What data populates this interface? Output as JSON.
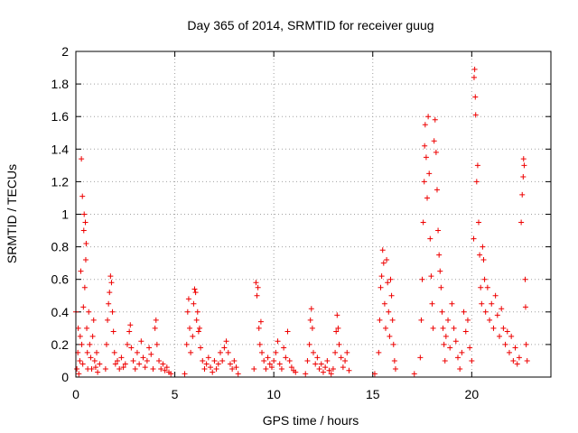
{
  "chart_data": {
    "type": "scatter",
    "title": "Day 365 of 2014, SRMTID for receiver guug",
    "xlabel": "GPS time / hours",
    "ylabel": "SRMTID / TECUs",
    "xlim": [
      0,
      24
    ],
    "ylim": [
      0,
      2
    ],
    "xticks": [
      "0",
      "5",
      "10",
      "15",
      "20"
    ],
    "xtick_values": [
      0,
      5,
      10,
      15,
      20
    ],
    "yticks": [
      "0",
      "0.2",
      "0.4",
      "0.6",
      "0.8",
      "1",
      "1.2",
      "1.4",
      "1.6",
      "1.8",
      "2"
    ],
    "ytick_values": [
      0,
      0.2,
      0.4,
      0.6,
      0.8,
      1.0,
      1.2,
      1.4,
      1.6,
      1.8,
      2.0
    ],
    "grid": true,
    "marker": "+",
    "color": "#ee0000",
    "series": [
      {
        "name": "SRMTID",
        "points": [
          [
            0.0,
            0.4
          ],
          [
            0.05,
            0.05
          ],
          [
            0.1,
            0.15
          ],
          [
            0.12,
            0.3
          ],
          [
            0.15,
            0.02
          ],
          [
            0.2,
            0.1
          ],
          [
            0.22,
            0.25
          ],
          [
            0.25,
            0.65
          ],
          [
            0.28,
            1.34
          ],
          [
            0.3,
            0.2
          ],
          [
            0.33,
            1.11
          ],
          [
            0.35,
            0.08
          ],
          [
            0.38,
            0.43
          ],
          [
            0.4,
            0.9
          ],
          [
            0.42,
            1.0
          ],
          [
            0.45,
            0.55
          ],
          [
            0.48,
            0.95
          ],
          [
            0.5,
            0.72
          ],
          [
            0.52,
            0.82
          ],
          [
            0.55,
            0.3
          ],
          [
            0.58,
            0.15
          ],
          [
            0.6,
            0.05
          ],
          [
            0.65,
            0.4
          ],
          [
            0.7,
            0.2
          ],
          [
            0.75,
            0.12
          ],
          [
            0.8,
            0.05
          ],
          [
            0.85,
            0.25
          ],
          [
            0.9,
            0.35
          ],
          [
            0.95,
            0.1
          ],
          [
            1.0,
            0.06
          ],
          [
            1.05,
            0.15
          ],
          [
            1.1,
            0.03
          ],
          [
            1.2,
            0.08
          ],
          [
            1.5,
            0.05
          ],
          [
            1.55,
            0.2
          ],
          [
            1.6,
            0.35
          ],
          [
            1.65,
            0.45
          ],
          [
            1.7,
            0.52
          ],
          [
            1.75,
            0.62
          ],
          [
            1.8,
            0.58
          ],
          [
            1.85,
            0.4
          ],
          [
            1.9,
            0.28
          ],
          [
            1.95,
            0.15
          ],
          [
            2.0,
            0.08
          ],
          [
            2.1,
            0.1
          ],
          [
            2.2,
            0.05
          ],
          [
            2.3,
            0.12
          ],
          [
            2.4,
            0.06
          ],
          [
            2.5,
            0.08
          ],
          [
            2.6,
            0.2
          ],
          [
            2.7,
            0.28
          ],
          [
            2.75,
            0.32
          ],
          [
            2.8,
            0.18
          ],
          [
            2.9,
            0.1
          ],
          [
            3.0,
            0.05
          ],
          [
            3.1,
            0.15
          ],
          [
            3.2,
            0.08
          ],
          [
            3.3,
            0.22
          ],
          [
            3.4,
            0.12
          ],
          [
            3.5,
            0.06
          ],
          [
            3.6,
            0.1
          ],
          [
            3.7,
            0.18
          ],
          [
            3.8,
            0.14
          ],
          [
            3.9,
            0.05
          ],
          [
            4.0,
            0.3
          ],
          [
            4.05,
            0.35
          ],
          [
            4.1,
            0.2
          ],
          [
            4.2,
            0.1
          ],
          [
            4.3,
            0.05
          ],
          [
            4.4,
            0.08
          ],
          [
            4.5,
            0.04
          ],
          [
            4.6,
            0.06
          ],
          [
            4.7,
            0.03
          ],
          [
            4.8,
            0.02
          ],
          [
            5.5,
            0.02
          ],
          [
            5.6,
            0.2
          ],
          [
            5.65,
            0.4
          ],
          [
            5.7,
            0.48
          ],
          [
            5.75,
            0.3
          ],
          [
            5.8,
            0.15
          ],
          [
            5.9,
            0.25
          ],
          [
            5.95,
            0.45
          ],
          [
            6.0,
            0.54
          ],
          [
            6.05,
            0.52
          ],
          [
            6.1,
            0.35
          ],
          [
            6.15,
            0.4
          ],
          [
            6.2,
            0.28
          ],
          [
            6.25,
            0.3
          ],
          [
            6.3,
            0.18
          ],
          [
            6.4,
            0.1
          ],
          [
            6.5,
            0.05
          ],
          [
            6.6,
            0.08
          ],
          [
            6.7,
            0.12
          ],
          [
            6.8,
            0.06
          ],
          [
            6.9,
            0.03
          ],
          [
            7.0,
            0.1
          ],
          [
            7.1,
            0.05
          ],
          [
            7.2,
            0.08
          ],
          [
            7.3,
            0.15
          ],
          [
            7.4,
            0.1
          ],
          [
            7.5,
            0.18
          ],
          [
            7.6,
            0.22
          ],
          [
            7.7,
            0.15
          ],
          [
            7.8,
            0.08
          ],
          [
            7.9,
            0.05
          ],
          [
            8.0,
            0.1
          ],
          [
            8.1,
            0.06
          ],
          [
            8.2,
            0.02
          ],
          [
            9.0,
            0.05
          ],
          [
            9.1,
            0.58
          ],
          [
            9.15,
            0.5
          ],
          [
            9.2,
            0.55
          ],
          [
            9.25,
            0.3
          ],
          [
            9.3,
            0.2
          ],
          [
            9.35,
            0.34
          ],
          [
            9.4,
            0.15
          ],
          [
            9.5,
            0.1
          ],
          [
            9.6,
            0.05
          ],
          [
            9.7,
            0.12
          ],
          [
            9.8,
            0.08
          ],
          [
            9.9,
            0.06
          ],
          [
            10.0,
            0.1
          ],
          [
            10.1,
            0.15
          ],
          [
            10.2,
            0.22
          ],
          [
            10.3,
            0.08
          ],
          [
            10.4,
            0.05
          ],
          [
            10.5,
            0.18
          ],
          [
            10.6,
            0.12
          ],
          [
            10.7,
            0.28
          ],
          [
            10.8,
            0.1
          ],
          [
            10.9,
            0.06
          ],
          [
            11.0,
            0.04
          ],
          [
            11.1,
            0.03
          ],
          [
            11.6,
            0.02
          ],
          [
            11.7,
            0.1
          ],
          [
            11.8,
            0.2
          ],
          [
            11.85,
            0.35
          ],
          [
            11.9,
            0.42
          ],
          [
            11.95,
            0.3
          ],
          [
            12.0,
            0.15
          ],
          [
            12.1,
            0.08
          ],
          [
            12.2,
            0.12
          ],
          [
            12.3,
            0.05
          ],
          [
            12.4,
            0.08
          ],
          [
            12.5,
            0.03
          ],
          [
            12.6,
            0.06
          ],
          [
            12.7,
            0.1
          ],
          [
            12.8,
            0.04
          ],
          [
            12.9,
            0.02
          ],
          [
            13.0,
            0.05
          ],
          [
            13.1,
            0.15
          ],
          [
            13.15,
            0.28
          ],
          [
            13.2,
            0.38
          ],
          [
            13.25,
            0.3
          ],
          [
            13.3,
            0.2
          ],
          [
            13.4,
            0.12
          ],
          [
            13.5,
            0.06
          ],
          [
            13.6,
            0.1
          ],
          [
            13.7,
            0.15
          ],
          [
            13.8,
            0.04
          ],
          [
            15.1,
            0.02
          ],
          [
            15.3,
            0.15
          ],
          [
            15.35,
            0.35
          ],
          [
            15.4,
            0.55
          ],
          [
            15.45,
            0.62
          ],
          [
            15.5,
            0.78
          ],
          [
            15.55,
            0.7
          ],
          [
            15.6,
            0.45
          ],
          [
            15.65,
            0.3
          ],
          [
            15.7,
            0.72
          ],
          [
            15.75,
            0.58
          ],
          [
            15.8,
            0.4
          ],
          [
            15.85,
            0.25
          ],
          [
            15.9,
            0.6
          ],
          [
            15.95,
            0.5
          ],
          [
            16.0,
            0.35
          ],
          [
            16.05,
            0.2
          ],
          [
            16.1,
            0.1
          ],
          [
            16.15,
            0.05
          ],
          [
            17.1,
            0.02
          ],
          [
            17.4,
            0.12
          ],
          [
            17.45,
            0.35
          ],
          [
            17.5,
            0.6
          ],
          [
            17.55,
            0.95
          ],
          [
            17.6,
            1.2
          ],
          [
            17.62,
            1.42
          ],
          [
            17.65,
            1.55
          ],
          [
            17.7,
            1.35
          ],
          [
            17.75,
            1.1
          ],
          [
            17.8,
            1.6
          ],
          [
            17.85,
            1.25
          ],
          [
            17.9,
            0.85
          ],
          [
            17.95,
            0.62
          ],
          [
            18.0,
            0.45
          ],
          [
            18.05,
            0.3
          ],
          [
            18.1,
            1.45
          ],
          [
            18.15,
            1.58
          ],
          [
            18.2,
            1.38
          ],
          [
            18.25,
            1.15
          ],
          [
            18.3,
            0.9
          ],
          [
            18.35,
            0.75
          ],
          [
            18.4,
            0.65
          ],
          [
            18.45,
            0.55
          ],
          [
            18.5,
            0.4
          ],
          [
            18.55,
            0.3
          ],
          [
            18.6,
            0.2
          ],
          [
            18.65,
            0.1
          ],
          [
            18.7,
            0.25
          ],
          [
            18.8,
            0.35
          ],
          [
            18.9,
            0.18
          ],
          [
            19.0,
            0.45
          ],
          [
            19.1,
            0.3
          ],
          [
            19.2,
            0.22
          ],
          [
            19.3,
            0.12
          ],
          [
            19.4,
            0.05
          ],
          [
            19.5,
            0.15
          ],
          [
            19.6,
            0.4
          ],
          [
            19.7,
            0.28
          ],
          [
            19.8,
            0.35
          ],
          [
            19.9,
            0.18
          ],
          [
            20.0,
            0.1
          ],
          [
            20.1,
            0.85
          ],
          [
            20.12,
            1.84
          ],
          [
            20.15,
            1.89
          ],
          [
            20.18,
            1.72
          ],
          [
            20.2,
            1.61
          ],
          [
            20.25,
            1.2
          ],
          [
            20.3,
            1.3
          ],
          [
            20.35,
            0.95
          ],
          [
            20.4,
            0.75
          ],
          [
            20.45,
            0.55
          ],
          [
            20.5,
            0.45
          ],
          [
            20.55,
            0.8
          ],
          [
            20.6,
            0.72
          ],
          [
            20.65,
            0.6
          ],
          [
            20.7,
            0.4
          ],
          [
            20.8,
            0.55
          ],
          [
            20.9,
            0.35
          ],
          [
            21.0,
            0.45
          ],
          [
            21.1,
            0.3
          ],
          [
            21.2,
            0.5
          ],
          [
            21.3,
            0.38
          ],
          [
            21.4,
            0.25
          ],
          [
            21.5,
            0.42
          ],
          [
            21.6,
            0.3
          ],
          [
            21.7,
            0.2
          ],
          [
            21.8,
            0.28
          ],
          [
            21.9,
            0.15
          ],
          [
            22.0,
            0.25
          ],
          [
            22.1,
            0.1
          ],
          [
            22.2,
            0.18
          ],
          [
            22.3,
            0.08
          ],
          [
            22.4,
            0.12
          ],
          [
            22.5,
            0.95
          ],
          [
            22.55,
            1.12
          ],
          [
            22.6,
            1.23
          ],
          [
            22.62,
            1.34
          ],
          [
            22.65,
            1.3
          ],
          [
            22.7,
            0.6
          ],
          [
            22.72,
            0.43
          ],
          [
            22.75,
            0.2
          ],
          [
            22.8,
            0.1
          ]
        ]
      }
    ]
  }
}
